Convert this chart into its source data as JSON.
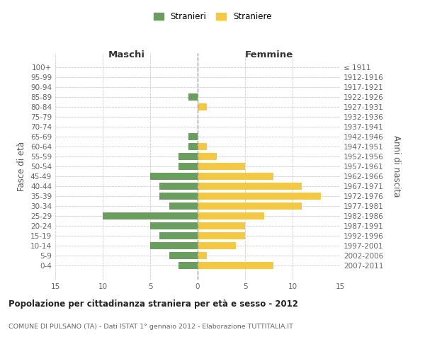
{
  "age_groups": [
    "100+",
    "95-99",
    "90-94",
    "85-89",
    "80-84",
    "75-79",
    "70-74",
    "65-69",
    "60-64",
    "55-59",
    "50-54",
    "45-49",
    "40-44",
    "35-39",
    "30-34",
    "25-29",
    "20-24",
    "15-19",
    "10-14",
    "5-9",
    "0-4"
  ],
  "birth_years": [
    "≤ 1911",
    "1912-1916",
    "1917-1921",
    "1922-1926",
    "1927-1931",
    "1932-1936",
    "1937-1941",
    "1942-1946",
    "1947-1951",
    "1952-1956",
    "1957-1961",
    "1962-1966",
    "1967-1971",
    "1972-1976",
    "1977-1981",
    "1982-1986",
    "1987-1991",
    "1992-1996",
    "1997-2001",
    "2002-2006",
    "2007-2011"
  ],
  "maschi": [
    0,
    0,
    0,
    1,
    0,
    0,
    0,
    1,
    1,
    2,
    2,
    5,
    4,
    4,
    3,
    10,
    5,
    4,
    5,
    3,
    2
  ],
  "femmine": [
    0,
    0,
    0,
    0,
    1,
    0,
    0,
    0,
    1,
    2,
    5,
    8,
    11,
    13,
    11,
    7,
    5,
    5,
    4,
    1,
    8
  ],
  "maschi_color": "#6a9e5f",
  "femmine_color": "#f5c842",
  "background_color": "#ffffff",
  "grid_color": "#cccccc",
  "title": "Popolazione per cittadinanza straniera per età e sesso - 2012",
  "subtitle": "COMUNE DI PULSANO (TA) - Dati ISTAT 1° gennaio 2012 - Elaborazione TUTTITALIA.IT",
  "xlabel_left": "Maschi",
  "xlabel_right": "Femmine",
  "ylabel_left": "Fasce di età",
  "ylabel_right": "Anni di nascita",
  "legend_maschi": "Stranieri",
  "legend_femmine": "Straniere",
  "xlim": 15,
  "bar_height": 0.75
}
